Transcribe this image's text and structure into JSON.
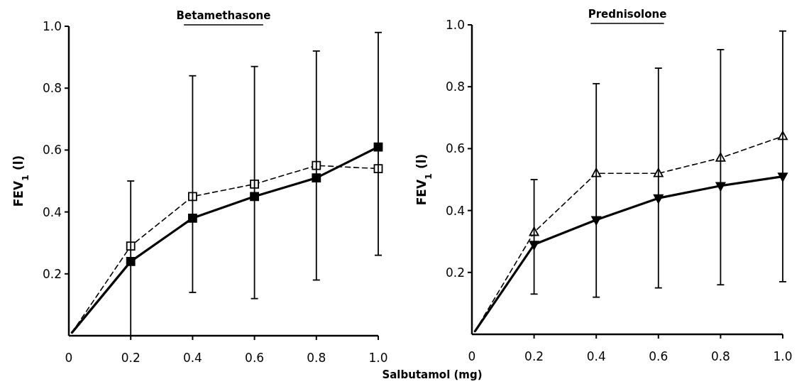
{
  "chart_data": [
    {
      "type": "line",
      "title": "Betamethasone",
      "xlabel": "Salbutamol (mg)",
      "ylabel": "FEV$_{1}$ (l)",
      "xlim": [
        0,
        1
      ],
      "ylim": [
        0,
        1
      ],
      "xticks": [
        0,
        0.2,
        0.4,
        0.6,
        0.8,
        {
          "value": 1,
          "label": "1.0"
        }
      ],
      "yticks": [
        0.2,
        0.4,
        0.6,
        0.8,
        {
          "value": 1,
          "label": "1.0"
        }
      ],
      "grid": false,
      "x": [
        0.01,
        0.2,
        0.4,
        0.6,
        0.8,
        1.0
      ],
      "series": [
        {
          "color": "#000000",
          "marker": "square",
          "line_style": "dashed",
          "values": [
            0.01,
            0.29,
            0.45,
            0.49,
            0.55,
            0.54
          ]
        },
        {
          "color": "#000000",
          "marker": "square",
          "line_style": "solid",
          "values": [
            0.01,
            0.24,
            0.38,
            0.45,
            0.51,
            0.61
          ],
          "errors": [
            null,
            [
              0.0,
              0.5
            ],
            [
              0.14,
              0.84
            ],
            [
              0.12,
              0.87
            ],
            [
              0.18,
              0.92
            ],
            [
              0.26,
              0.98
            ]
          ]
        }
      ]
    },
    {
      "type": "line",
      "title": "Prednisolone",
      "ylabel": "FEV$_{1}$ (l)",
      "xlim": [
        0,
        1
      ],
      "ylim": [
        0,
        1
      ],
      "xticks": [
        0,
        0.2,
        0.4,
        0.6,
        0.8,
        {
          "value": 1,
          "label": "1.0"
        }
      ],
      "yticks": [
        0.2,
        0.4,
        0.6,
        0.8,
        {
          "value": 1,
          "label": "1.0"
        }
      ],
      "grid": false,
      "x": [
        0.01,
        0.2,
        0.4,
        0.6,
        0.8,
        1.0
      ],
      "series": [
        {
          "color": "#000000",
          "marker": "triangle",
          "line_style": "dashed",
          "values": [
            0.01,
            0.33,
            0.52,
            0.52,
            0.57,
            0.64
          ]
        },
        {
          "color": "#000000",
          "marker": "triangle",
          "line_style": "solid",
          "values": [
            0.01,
            0.29,
            0.37,
            0.44,
            0.48,
            0.51
          ],
          "errors": [
            null,
            [
              0.13,
              0.5
            ],
            [
              0.12,
              0.81
            ],
            [
              0.15,
              0.86
            ],
            [
              0.16,
              0.92
            ],
            [
              0.17,
              0.98
            ]
          ]
        }
      ]
    }
  ]
}
